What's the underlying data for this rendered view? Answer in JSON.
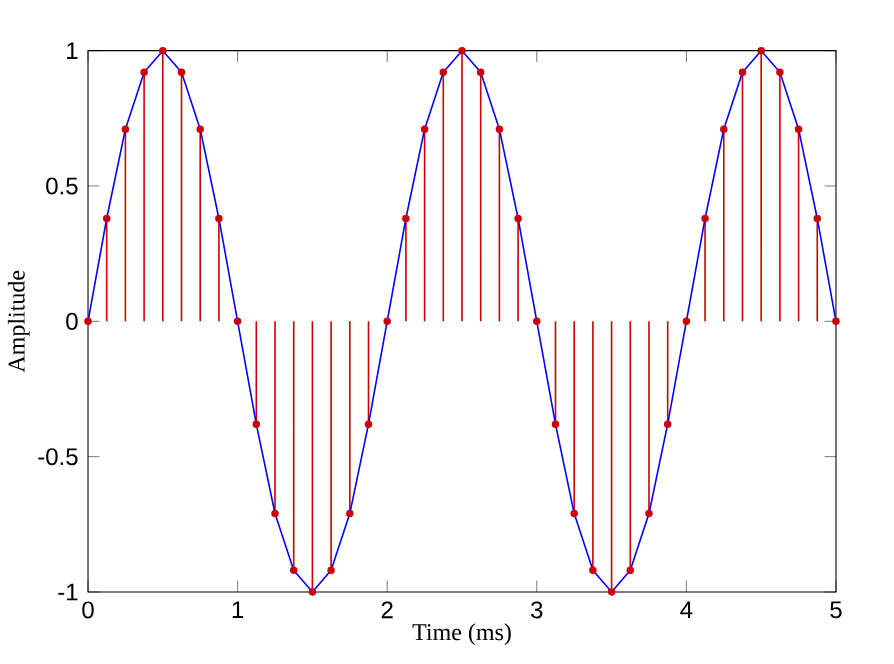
{
  "chart_data": {
    "type": "line",
    "xlabel": "Time (ms)",
    "ylabel": "Amplitude",
    "x": [
      0,
      0.125,
      0.25,
      0.375,
      0.5,
      0.625,
      0.75,
      0.875,
      1,
      1.125,
      1.25,
      1.375,
      1.5,
      1.625,
      1.75,
      1.875,
      2,
      2.125,
      2.25,
      2.375,
      2.5,
      2.625,
      2.75,
      2.875,
      3,
      3.125,
      3.25,
      3.375,
      3.5,
      3.625,
      3.75,
      3.875,
      4,
      4.125,
      4.25,
      4.375,
      4.5,
      4.625,
      4.75,
      4.875,
      5
    ],
    "series": [
      {
        "type": "lollipop",
        "color": "#cc0000",
        "marker": "circle",
        "values": [
          0,
          0.38,
          0.71,
          0.92,
          1,
          0.92,
          0.71,
          0.38,
          0,
          -0.38,
          -0.71,
          -0.92,
          -1,
          -0.92,
          -0.71,
          -0.38,
          0,
          0.38,
          0.71,
          0.92,
          1,
          0.92,
          0.71,
          0.38,
          0,
          -0.38,
          -0.71,
          -0.92,
          -1,
          -0.92,
          -0.71,
          -0.38,
          0,
          0.38,
          0.71,
          0.92,
          1,
          0.92,
          0.71,
          0.38,
          0
        ]
      },
      {
        "color": "#0000ff",
        "line_style": "solid",
        "values": [
          0,
          0.38,
          0.71,
          0.92,
          1,
          0.92,
          0.71,
          0.38,
          0,
          -0.38,
          -0.71,
          -0.92,
          -1,
          -0.92,
          -0.71,
          -0.38,
          0,
          0.38,
          0.71,
          0.92,
          1,
          0.92,
          0.71,
          0.38,
          0,
          -0.38,
          -0.71,
          -0.92,
          -1,
          -0.92,
          -0.71,
          -0.38,
          0,
          0.38,
          0.71,
          0.92,
          1,
          0.92,
          0.71,
          0.38,
          0
        ]
      }
    ],
    "xlim": [
      0,
      5
    ],
    "ylim": [
      -1,
      1
    ],
    "xticks": [
      0,
      1,
      2,
      3,
      4,
      5
    ],
    "yticks": [
      -1,
      -0.5,
      0,
      0.5,
      1
    ],
    "grid": false
  }
}
